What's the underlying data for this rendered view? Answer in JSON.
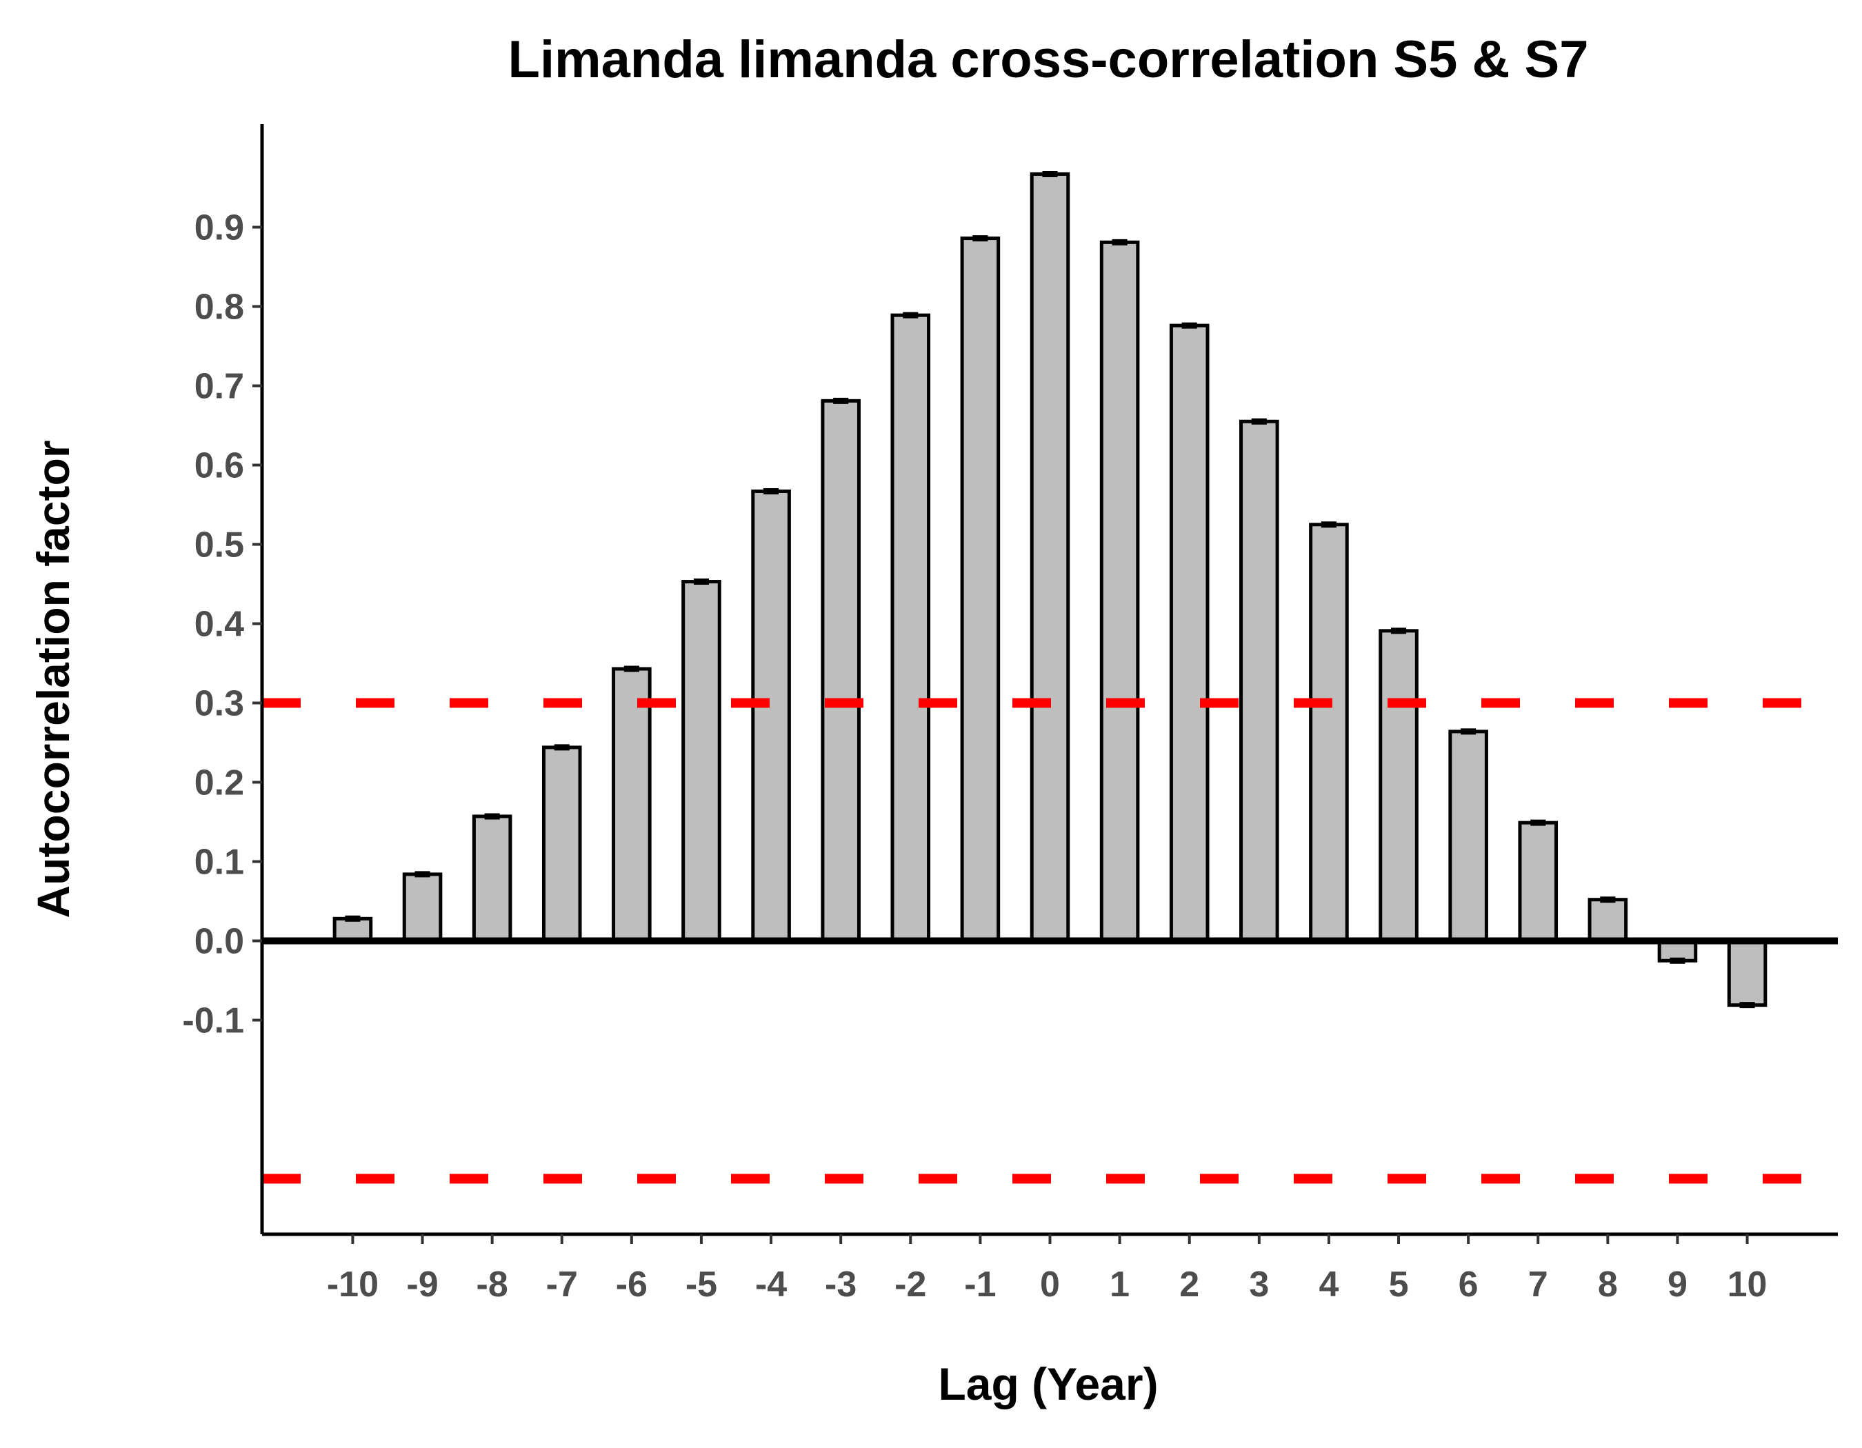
{
  "chart_data": {
    "type": "bar",
    "title": "Limanda limanda cross-correlation S5 & S7",
    "xlabel": "Lag (Year)",
    "ylabel": "Autocorrelation factor",
    "categories": [
      "-10",
      "-9",
      "-8",
      "-7",
      "-6",
      "-5",
      "-4",
      "-3",
      "-2",
      "-1",
      "0",
      "1",
      "2",
      "3",
      "4",
      "5",
      "6",
      "7",
      "8",
      "9",
      "10"
    ],
    "values": [
      0.028,
      0.084,
      0.157,
      0.244,
      0.343,
      0.453,
      0.567,
      0.681,
      0.789,
      0.886,
      0.967,
      0.881,
      0.776,
      0.655,
      0.525,
      0.391,
      0.264,
      0.149,
      0.052,
      -0.025,
      -0.081
    ],
    "y_ticks": [
      "-0.1",
      "0.0",
      "0.1",
      "0.2",
      "0.3",
      "0.4",
      "0.5",
      "0.6",
      "0.7",
      "0.8",
      "0.9"
    ],
    "ylim": [
      -0.37,
      1.03
    ],
    "x_range": [
      -11.3,
      11.3
    ],
    "reference_lines": [
      {
        "value": 0.3,
        "style": "dashed",
        "color": "#ff0000"
      },
      {
        "value": -0.3,
        "style": "dashed",
        "color": "#ff0000"
      },
      {
        "value": 0.0,
        "style": "solid",
        "color": "#000000"
      }
    ],
    "bar_fill": "#bebebe",
    "bar_stroke": "#000000",
    "grid": false,
    "legend": "none"
  }
}
